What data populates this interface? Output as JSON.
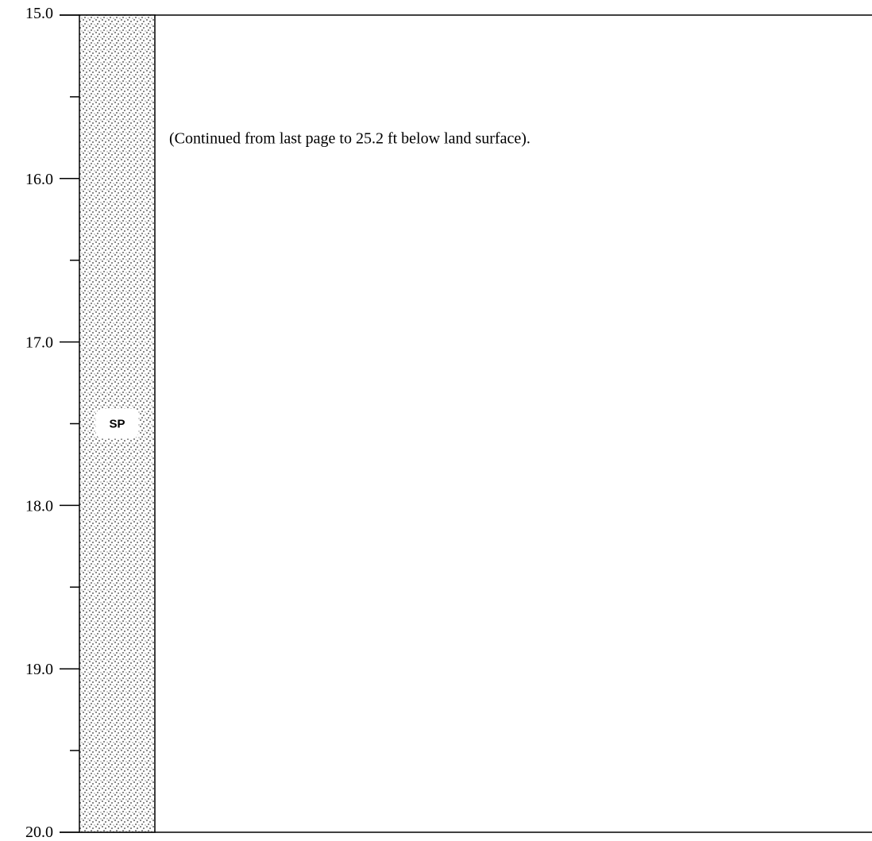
{
  "depth_axis": {
    "top": 15.0,
    "bottom": 20.0,
    "labels": [
      "15.0",
      "16.0",
      "17.0",
      "18.0",
      "19.0",
      "20.0"
    ],
    "label_values": [
      15.0,
      16.0,
      17.0,
      18.0,
      19.0,
      20.0
    ],
    "minor_tick_values": [
      15.5,
      16.5,
      17.5,
      18.5,
      19.5
    ]
  },
  "layers": [
    {
      "code": "SP",
      "top": 15.0,
      "bottom": 20.0,
      "pattern": "stippled-sand",
      "code_depth": 17.5
    }
  ],
  "description": {
    "text": "(Continued from last page to 25.2 ft below land surface).",
    "depth": 15.75
  },
  "colors": {
    "line": "#000000",
    "background": "#ffffff",
    "stipple": "#5a5a5a"
  }
}
